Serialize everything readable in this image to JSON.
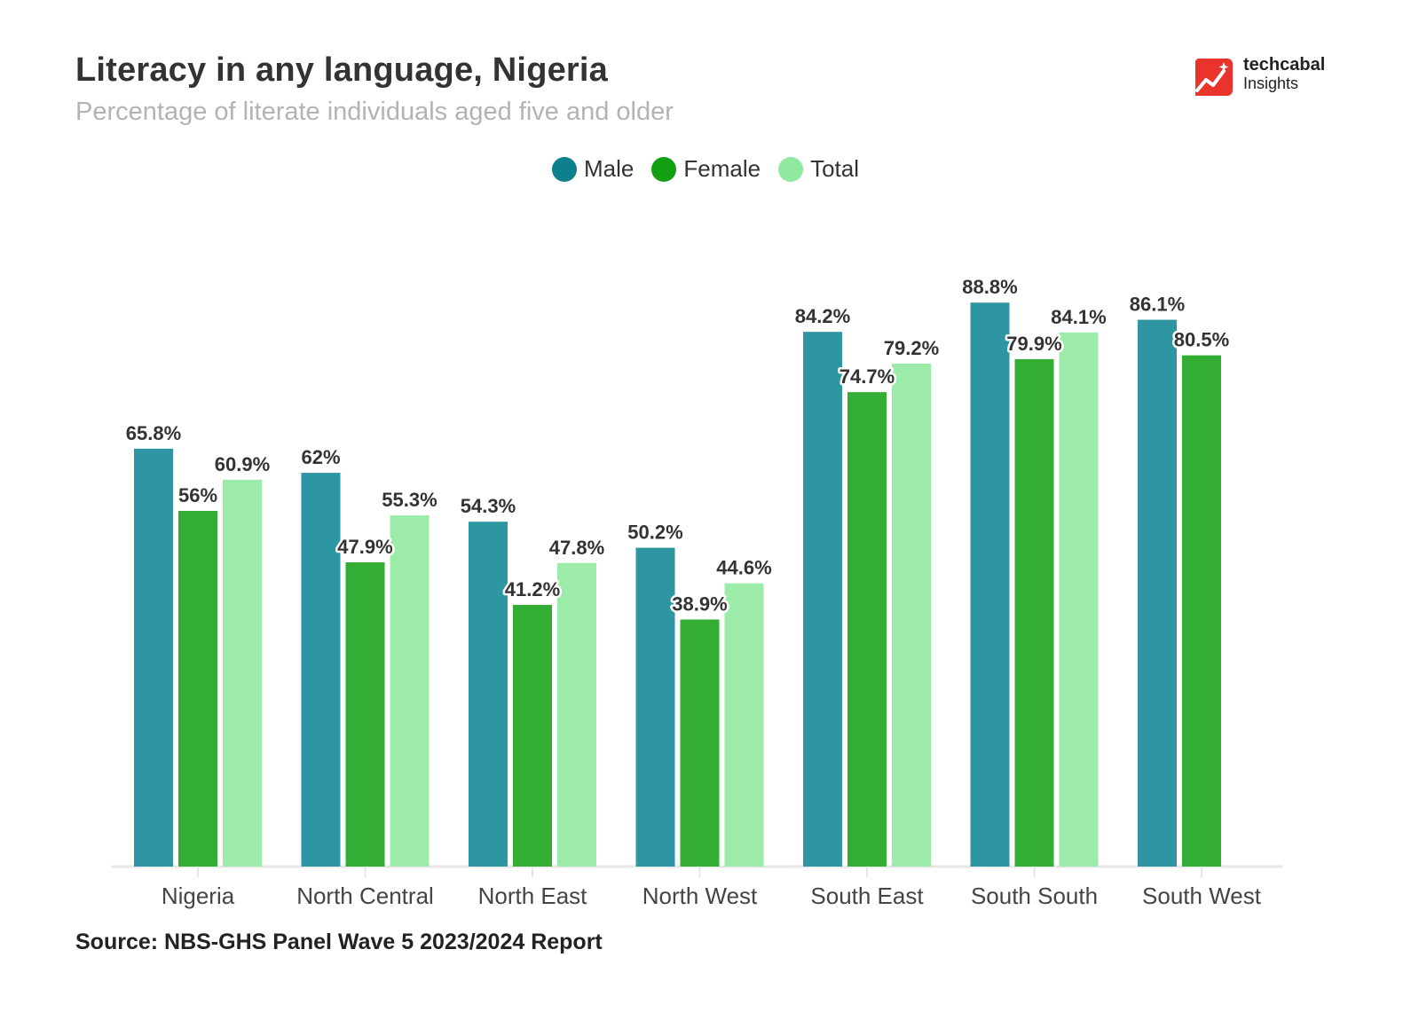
{
  "chart_data": {
    "type": "bar",
    "title": "Literacy in any language, Nigeria",
    "subtitle": "Percentage of literate individuals aged five and older",
    "xlabel": "",
    "ylabel": "",
    "ylim": [
      0,
      100
    ],
    "grid": false,
    "legend_position": "top-center",
    "categories": [
      "Nigeria",
      "North Central",
      "North East",
      "North West",
      "South East",
      "South South",
      "South West"
    ],
    "series": [
      {
        "name": "Male",
        "color": "#2e96a3",
        "values": [
          65.8,
          62,
          54.3,
          50.2,
          84.2,
          88.8,
          86.1
        ],
        "labels": [
          "65.8%",
          "62%",
          "54.3%",
          "50.2%",
          "84.2%",
          "88.8%",
          "86.1%"
        ]
      },
      {
        "name": "Female",
        "color": "#33ad33",
        "values": [
          56,
          47.9,
          41.2,
          38.9,
          74.7,
          79.9,
          80.5
        ],
        "labels": [
          "56%",
          "47.9%",
          "41.2%",
          "38.9%",
          "74.7%",
          "79.9%",
          "80.5%"
        ]
      },
      {
        "name": "Total",
        "color": "#9ceba8",
        "values": [
          60.9,
          55.3,
          47.8,
          44.6,
          79.2,
          84.1,
          null
        ],
        "labels": [
          "60.9%",
          "55.3%",
          "47.8%",
          "44.6%",
          "79.2%",
          "84.1%",
          null
        ]
      }
    ],
    "source": "Source: NBS-GHS Panel Wave 5 2023/2024 Report"
  },
  "legend": {
    "male_color": "#0e7f8c",
    "female_color": "#12a012",
    "total_color": "#8fe9a0"
  },
  "logo": {
    "name": "techcabal",
    "sub": "Insights",
    "icon": "trend-up-icon",
    "color": "#e8342a"
  }
}
